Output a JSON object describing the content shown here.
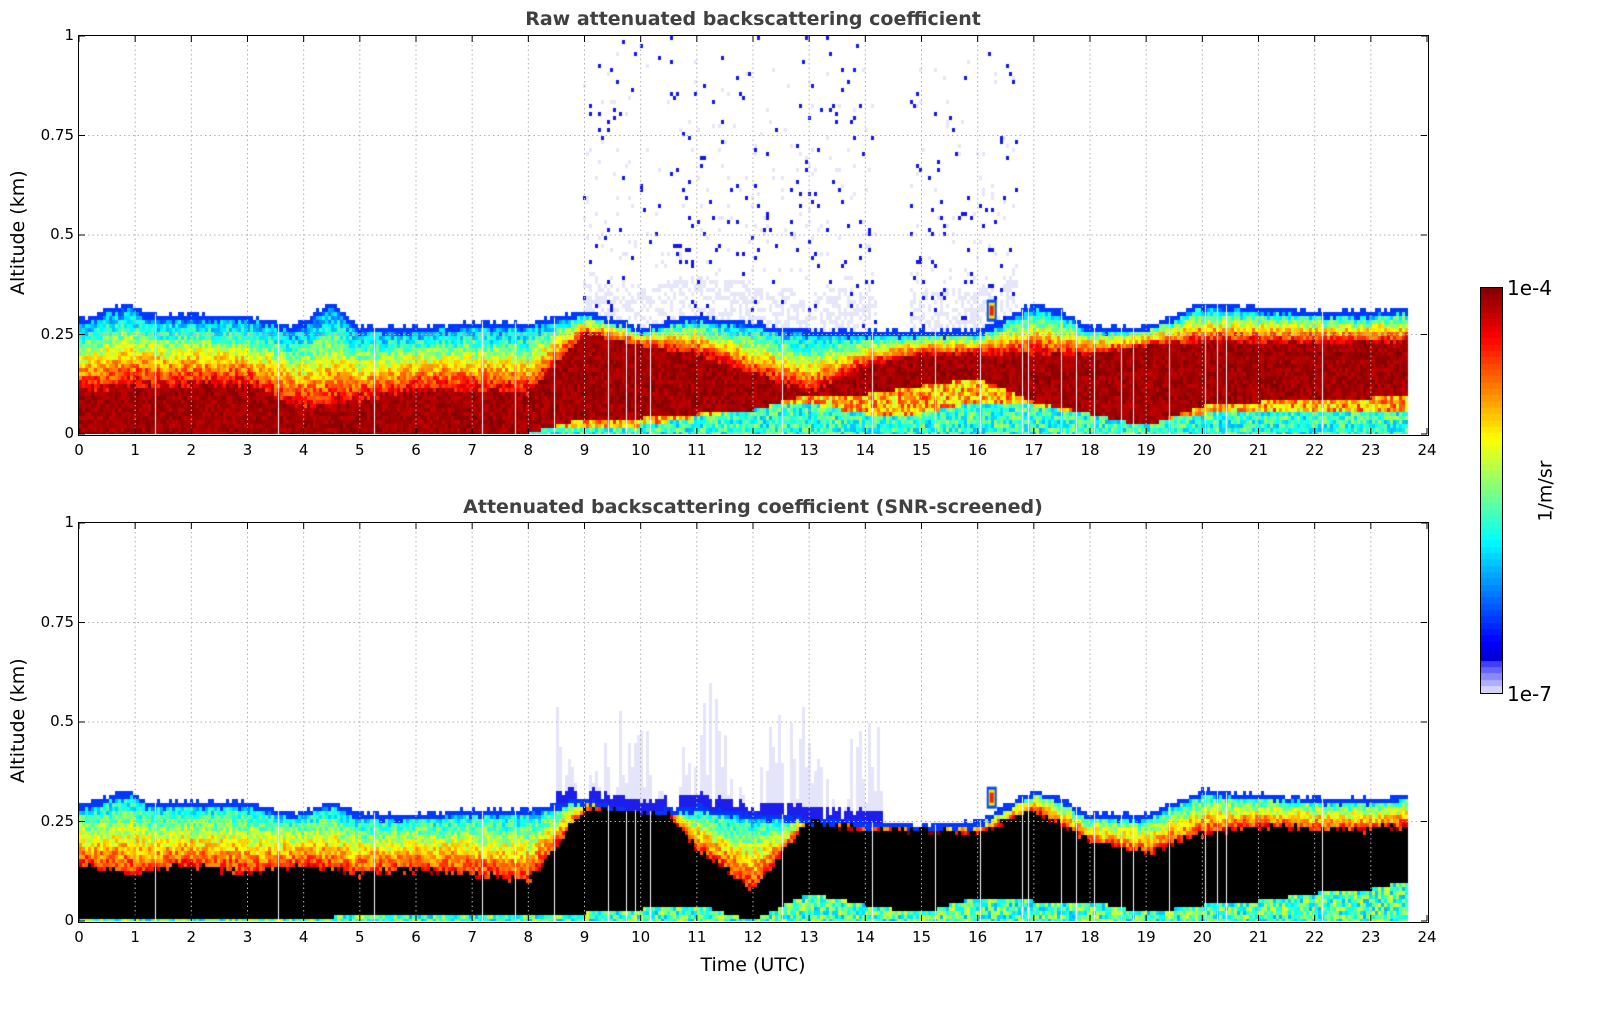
{
  "chart_data": [
    {
      "type": "heatmap",
      "id": "raw",
      "title": "Raw attenuated backscattering coefficient",
      "xlabel": "",
      "ylabel": "Altitude (km)",
      "xlim": [
        0,
        24
      ],
      "ylim": [
        0,
        1
      ],
      "xticks": [
        0,
        1,
        2,
        3,
        4,
        5,
        6,
        7,
        8,
        9,
        10,
        11,
        12,
        13,
        14,
        15,
        16,
        17,
        18,
        19,
        20,
        21,
        22,
        23,
        24
      ],
      "yticks": [
        0,
        0.25,
        0.5,
        0.75,
        1
      ],
      "ytick_labels": [
        "0",
        "0.25",
        "0.5",
        "0.75",
        "1"
      ],
      "grid": true,
      "data_end_hour": 23.65,
      "layer_top_km": [
        [
          0,
          0.29
        ],
        [
          0.9,
          0.33
        ],
        [
          1.2,
          0.3
        ],
        [
          2,
          0.3
        ],
        [
          3,
          0.3
        ],
        [
          3.8,
          0.27
        ],
        [
          4.5,
          0.33
        ],
        [
          5,
          0.27
        ],
        [
          6,
          0.27
        ],
        [
          7,
          0.28
        ],
        [
          8,
          0.28
        ],
        [
          9,
          0.31
        ],
        [
          10,
          0.27
        ],
        [
          11,
          0.3
        ],
        [
          12,
          0.28
        ],
        [
          13,
          0.26
        ],
        [
          14,
          0.26
        ],
        [
          15,
          0.26
        ],
        [
          16,
          0.26
        ],
        [
          17,
          0.33
        ],
        [
          17.5,
          0.31
        ],
        [
          18,
          0.27
        ],
        [
          19,
          0.27
        ],
        [
          19.5,
          0.3
        ],
        [
          20,
          0.33
        ],
        [
          21,
          0.32
        ],
        [
          22,
          0.31
        ],
        [
          23,
          0.31
        ],
        [
          23.65,
          0.32
        ]
      ],
      "dense_core_top_km": [
        [
          0,
          0.1
        ],
        [
          1,
          0.12
        ],
        [
          2,
          0.12
        ],
        [
          3,
          0.12
        ],
        [
          4,
          0.06
        ],
        [
          5,
          0.08
        ],
        [
          6,
          0.11
        ],
        [
          7,
          0.11
        ],
        [
          8,
          0.1
        ],
        [
          9,
          0.25
        ],
        [
          10,
          0.22
        ],
        [
          11,
          0.2
        ],
        [
          12,
          0.15
        ],
        [
          13,
          0.1
        ],
        [
          14,
          0.17
        ],
        [
          15,
          0.2
        ],
        [
          16,
          0.2
        ],
        [
          17,
          0.2
        ],
        [
          18,
          0.2
        ],
        [
          19,
          0.22
        ],
        [
          20,
          0.23
        ],
        [
          21,
          0.23
        ],
        [
          22,
          0.23
        ],
        [
          23,
          0.23
        ],
        [
          23.65,
          0.23
        ]
      ],
      "dense_core_bottom_km": [
        [
          0,
          0
        ],
        [
          8,
          0
        ],
        [
          9,
          0.04
        ],
        [
          10,
          0.04
        ],
        [
          12,
          0.06
        ],
        [
          13,
          0.1
        ],
        [
          14,
          0.1
        ],
        [
          15,
          0.12
        ],
        [
          16,
          0.14
        ],
        [
          17,
          0.08
        ],
        [
          18,
          0.05
        ],
        [
          19,
          0.02
        ],
        [
          20,
          0.07
        ],
        [
          21,
          0.08
        ],
        [
          22,
          0.09
        ],
        [
          23,
          0.09
        ],
        [
          23.65,
          0.1
        ]
      ],
      "surface_clear_layer_km": [
        [
          0,
          0
        ],
        [
          9,
          0.02
        ],
        [
          10,
          0.02
        ],
        [
          12.8,
          0.08
        ],
        [
          14,
          0.05
        ],
        [
          15,
          0.05
        ],
        [
          16,
          0.08
        ],
        [
          17,
          0.07
        ],
        [
          18,
          0.05
        ],
        [
          19,
          0.03
        ],
        [
          20,
          0.05
        ],
        [
          23.65,
          0.06
        ]
      ],
      "noise_region_hours": [
        [
          9,
          11
        ],
        [
          11,
          14.2
        ],
        [
          14.8,
          16.7
        ]
      ],
      "noise_max_altitude_km": 1.0,
      "feature_elevated_aerosol": {
        "hour": 16.25,
        "altitude_km": 0.31
      }
    },
    {
      "type": "heatmap",
      "id": "snr",
      "title": "Attenuated backscattering coefficient (SNR-screened)",
      "xlabel": "Time (UTC)",
      "ylabel": "Altitude (km)",
      "xlim": [
        0,
        24
      ],
      "ylim": [
        0,
        1
      ],
      "xticks": [
        0,
        1,
        2,
        3,
        4,
        5,
        6,
        7,
        8,
        9,
        10,
        11,
        12,
        13,
        14,
        15,
        16,
        17,
        18,
        19,
        20,
        21,
        22,
        23,
        24
      ],
      "yticks": [
        0,
        0.25,
        0.5,
        0.75,
        1
      ],
      "ytick_labels": [
        "0",
        "0.25",
        "0.5",
        "0.75",
        "1"
      ],
      "grid": true,
      "data_end_hour": 23.65,
      "screened_fill_color": "#000000",
      "layer_top_km": [
        [
          0,
          0.29
        ],
        [
          0.9,
          0.33
        ],
        [
          1.2,
          0.3
        ],
        [
          2,
          0.3
        ],
        [
          3,
          0.3
        ],
        [
          3.8,
          0.27
        ],
        [
          4.5,
          0.3
        ],
        [
          5,
          0.27
        ],
        [
          6,
          0.27
        ],
        [
          7,
          0.28
        ],
        [
          8,
          0.28
        ],
        [
          9,
          0.31
        ],
        [
          10,
          0.27
        ],
        [
          11,
          0.29
        ],
        [
          12,
          0.27
        ],
        [
          13,
          0.26
        ],
        [
          14,
          0.25
        ],
        [
          15,
          0.24
        ],
        [
          16,
          0.25
        ],
        [
          17,
          0.33
        ],
        [
          17.5,
          0.31
        ],
        [
          18,
          0.27
        ],
        [
          19,
          0.27
        ],
        [
          19.5,
          0.3
        ],
        [
          20,
          0.33
        ],
        [
          21,
          0.32
        ],
        [
          22,
          0.31
        ],
        [
          23,
          0.31
        ],
        [
          23.65,
          0.32
        ]
      ],
      "screened_top_km": [
        [
          0,
          0.14
        ],
        [
          1,
          0.12
        ],
        [
          2,
          0.14
        ],
        [
          3,
          0.12
        ],
        [
          4,
          0.14
        ],
        [
          5,
          0.12
        ],
        [
          6,
          0.13
        ],
        [
          7,
          0.12
        ],
        [
          8,
          0.1
        ],
        [
          9,
          0.28
        ],
        [
          10,
          0.28
        ],
        [
          10.5,
          0.27
        ],
        [
          11,
          0.18
        ],
        [
          12,
          0.08
        ],
        [
          13,
          0.25
        ],
        [
          14,
          0.23
        ],
        [
          15,
          0.23
        ],
        [
          16,
          0.22
        ],
        [
          17,
          0.28
        ],
        [
          18,
          0.2
        ],
        [
          19,
          0.17
        ],
        [
          20,
          0.22
        ],
        [
          21,
          0.24
        ],
        [
          22,
          0.23
        ],
        [
          23,
          0.23
        ],
        [
          23.65,
          0.24
        ]
      ],
      "surface_visible_km": [
        [
          0,
          0
        ],
        [
          9,
          0.02
        ],
        [
          10,
          0.03
        ],
        [
          11,
          0.04
        ],
        [
          12,
          0.0
        ],
        [
          13,
          0.07
        ],
        [
          14,
          0.04
        ],
        [
          15,
          0.02
        ],
        [
          16,
          0.06
        ],
        [
          17,
          0.05
        ],
        [
          18,
          0.05
        ],
        [
          19,
          0.02
        ],
        [
          20,
          0.04
        ],
        [
          21,
          0.05
        ],
        [
          22,
          0.07
        ],
        [
          23,
          0.08
        ],
        [
          23.65,
          0.1
        ]
      ],
      "faint_plume_hours": [
        [
          8.5,
          10.5
        ],
        [
          10.7,
          14.3
        ]
      ],
      "faint_plume_max_altitude_km": 0.62,
      "feature_elevated_aerosol": {
        "hour": 16.25,
        "altitude_km": 0.31
      }
    }
  ],
  "colorbar": {
    "max_label": "1e-4",
    "min_label": "1e-7",
    "unit": "1/m/sr",
    "scale": "log",
    "range": [
      1e-07,
      0.0001
    ],
    "colormap": "jet-with-light-blue-low-end"
  }
}
